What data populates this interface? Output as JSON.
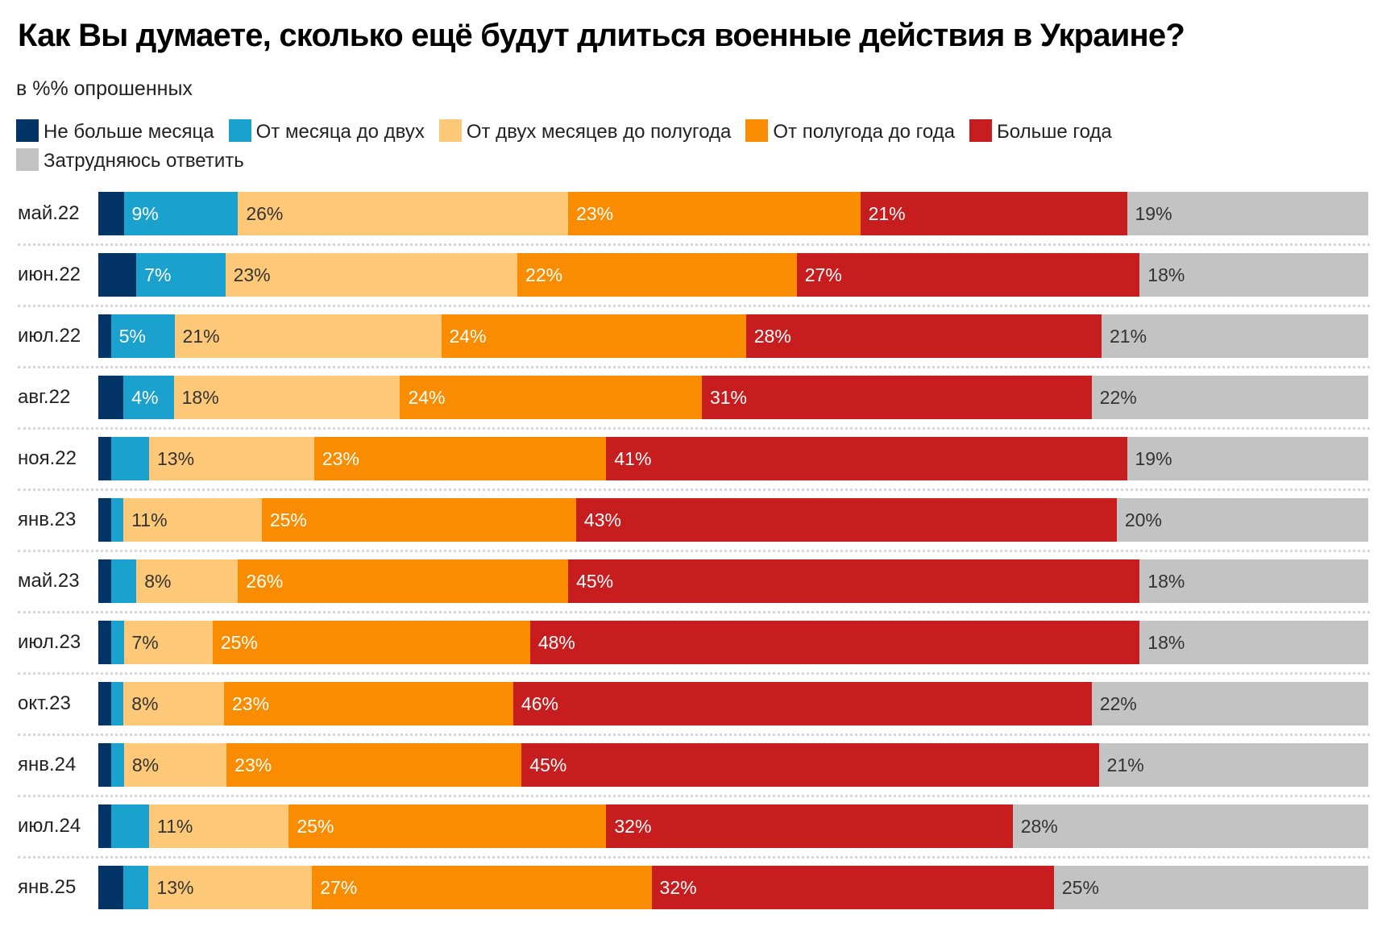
{
  "title": "Как Вы думаете, сколько ещё будут длиться военные действия в Украине?",
  "subtitle": "в %% опрошенных",
  "legend": [
    {
      "label": "Не больше месяца",
      "color": "#023466"
    },
    {
      "label": "От месяца до двух",
      "color": "#1aa1cd"
    },
    {
      "label": "От двух месяцев до полугода",
      "color": "#fdc978"
    },
    {
      "label": "От полугода до года",
      "color": "#f98c00"
    },
    {
      "label": "Больше года",
      "color": "#c81d1e"
    },
    {
      "label": "Затрудняюсь ответить",
      "color": "#c3c3c3"
    }
  ],
  "label_colors": [
    "#ffffff",
    "#ffffff",
    "#333333",
    "#ffffff",
    "#ffffff",
    "#333333"
  ],
  "chart_data": {
    "type": "bar",
    "orientation": "horizontal",
    "stacked": true,
    "title": "Как Вы думаете, сколько ещё будут длиться военные действия в Украине?",
    "subtitle": "в %% опрошенных",
    "xlabel": "",
    "ylabel": "",
    "xlim": [
      0,
      100
    ],
    "legend_position": "top",
    "categories": [
      "май.22",
      "июн.22",
      "июл.22",
      "авг.22",
      "ноя.22",
      "янв.23",
      "май.23",
      "июл.23",
      "окт.23",
      "янв.24",
      "июл.24",
      "янв.25"
    ],
    "series": [
      {
        "name": "Не больше месяца",
        "values": [
          2,
          3,
          1,
          2,
          1,
          1,
          1,
          1,
          1,
          1,
          1,
          2
        ],
        "labeled": false
      },
      {
        "name": "От месяца до двух",
        "values": [
          9,
          7,
          5,
          4,
          3,
          1,
          2,
          1,
          1,
          1,
          3,
          2
        ],
        "labeled": [
          true,
          true,
          true,
          true,
          false,
          false,
          false,
          false,
          false,
          false,
          false,
          false
        ]
      },
      {
        "name": "От двух месяцев до полугода",
        "values": [
          26,
          23,
          21,
          18,
          13,
          11,
          8,
          7,
          8,
          8,
          11,
          13
        ],
        "labeled": true
      },
      {
        "name": "От полугода до года",
        "values": [
          23,
          22,
          24,
          24,
          23,
          25,
          26,
          25,
          23,
          23,
          25,
          27
        ],
        "labeled": true
      },
      {
        "name": "Больше года",
        "values": [
          21,
          27,
          28,
          31,
          41,
          43,
          45,
          48,
          46,
          45,
          32,
          32
        ],
        "labeled": true
      },
      {
        "name": "Затрудняюсь ответить",
        "values": [
          19,
          18,
          21,
          22,
          19,
          20,
          18,
          18,
          22,
          21,
          28,
          25
        ],
        "labeled": true
      }
    ]
  }
}
